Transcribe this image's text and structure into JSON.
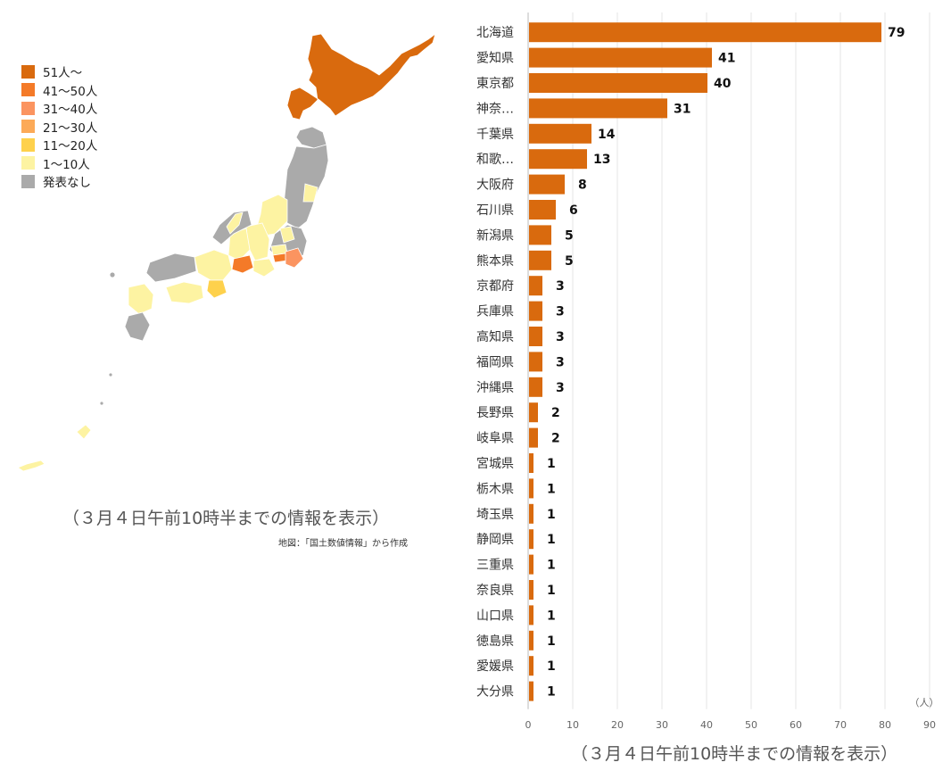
{
  "legend": {
    "items": [
      {
        "label": "51人〜",
        "color": "#d96a0e"
      },
      {
        "label": "41〜50人",
        "color": "#f47a28"
      },
      {
        "label": "31〜40人",
        "color": "#fb9460"
      },
      {
        "label": "21〜30人",
        "color": "#fcaa58"
      },
      {
        "label": "11〜20人",
        "color": "#fed14c"
      },
      {
        "label": "1〜10人",
        "color": "#fdf3a2"
      },
      {
        "label": "発表なし",
        "color": "#aaaaaa"
      }
    ]
  },
  "map": {
    "note": "（３月４日午前10時半までの情報を表示）",
    "credit": "地図：「国土数値情報」から作成"
  },
  "chart_data": {
    "type": "bar",
    "orientation": "horizontal",
    "categories": [
      "北海道",
      "愛知県",
      "東京都",
      "神奈…",
      "千葉県",
      "和歌…",
      "大阪府",
      "石川県",
      "新潟県",
      "熊本県",
      "京都府",
      "兵庫県",
      "高知県",
      "福岡県",
      "沖縄県",
      "長野県",
      "岐阜県",
      "宮城県",
      "栃木県",
      "埼玉県",
      "静岡県",
      "三重県",
      "奈良県",
      "山口県",
      "徳島県",
      "愛媛県",
      "大分県"
    ],
    "values": [
      79,
      41,
      40,
      31,
      14,
      13,
      8,
      6,
      5,
      5,
      3,
      3,
      3,
      3,
      3,
      2,
      2,
      1,
      1,
      1,
      1,
      1,
      1,
      1,
      1,
      1,
      1
    ],
    "value_labels": [
      "79",
      "41",
      "40",
      "31",
      "14",
      "13",
      "8",
      "6",
      "5",
      "5",
      "3",
      "3",
      "3",
      "3",
      "3",
      "2",
      "2",
      "1",
      "1",
      "1",
      "1",
      "1",
      "1",
      "1",
      "1",
      "1",
      "1"
    ],
    "xlim": [
      0,
      90
    ],
    "xticks": [
      "0",
      "10",
      "20",
      "30",
      "40",
      "50",
      "60",
      "70",
      "80",
      "90"
    ],
    "xlabel": "（人）",
    "bar_color": "#d96a0e",
    "grid": true,
    "note": "（３月４日午前10時半までの情報を表示）"
  }
}
